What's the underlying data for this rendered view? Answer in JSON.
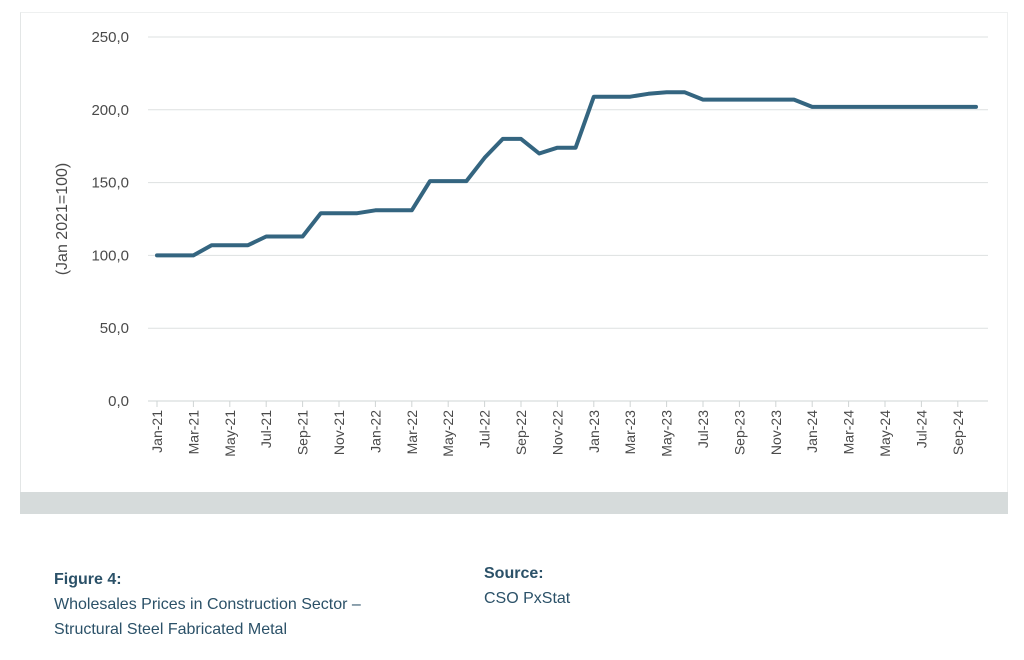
{
  "chart_data": {
    "type": "line",
    "title": "",
    "xlabel": "",
    "ylabel": "(Jan 2021=100)",
    "ylim": [
      0,
      250
    ],
    "yticks": [
      "0,0",
      "50,0",
      "100,0",
      "150,0",
      "200,0",
      "250,0"
    ],
    "x_tick_labels": [
      "Jan-21",
      "Mar-21",
      "May-21",
      "Jul-21",
      "Sep-21",
      "Nov-21",
      "Jan-22",
      "Mar-22",
      "May-22",
      "Jul-22",
      "Sep-22",
      "Nov-22",
      "Jan-23",
      "Mar-23",
      "May-23",
      "Jul-23",
      "Sep-23",
      "Nov-23",
      "Jan-24",
      "Mar-24",
      "May-24",
      "Jul-24",
      "Sep-24"
    ],
    "grid": true,
    "line_color": "#346580",
    "series": [
      {
        "x": [
          "Jan-21",
          "Feb-21",
          "Mar-21",
          "Apr-21",
          "May-21",
          "Jun-21",
          "Jul-21",
          "Aug-21",
          "Sep-21",
          "Oct-21",
          "Nov-21",
          "Dec-21",
          "Jan-22",
          "Feb-22",
          "Mar-22",
          "Apr-22",
          "May-22",
          "Jun-22",
          "Jul-22",
          "Aug-22",
          "Sep-22",
          "Oct-22",
          "Nov-22",
          "Dec-22",
          "Jan-23",
          "Feb-23",
          "Mar-23",
          "Apr-23",
          "May-23",
          "Jun-23",
          "Jul-23",
          "Aug-23",
          "Sep-23",
          "Oct-23",
          "Nov-23",
          "Dec-23",
          "Jan-24",
          "Feb-24",
          "Mar-24",
          "Apr-24",
          "May-24",
          "Jun-24",
          "Jul-24",
          "Aug-24",
          "Sep-24",
          "Oct-24"
        ],
        "values": [
          100,
          100,
          100,
          107,
          107,
          107,
          113,
          113,
          113,
          129,
          129,
          129,
          131,
          131,
          131,
          151,
          151,
          151,
          167,
          180,
          180,
          170,
          174,
          174,
          209,
          209,
          209,
          211,
          212,
          212,
          207,
          207,
          207,
          207,
          207,
          207,
          202,
          202,
          202,
          202,
          202,
          202,
          202,
          202,
          202,
          202
        ]
      }
    ]
  },
  "caption": {
    "label": "Figure 4:",
    "line1": "Wholesales Prices in Construction Sector –",
    "line2": "Structural Steel Fabricated Metal"
  },
  "source": {
    "label": "Source:",
    "text": "CSO PxStat"
  }
}
